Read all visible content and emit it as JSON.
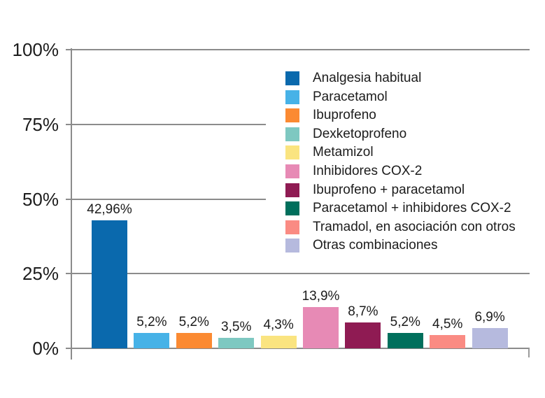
{
  "chart_data": {
    "type": "bar",
    "categories": [
      "Analgesia habitual",
      "Paracetamol",
      "Ibuprofeno",
      "Dexketoprofeno",
      "Metamizol",
      "Inhibidores COX-2",
      "Ibuprofeno + paracetamol",
      "Paracetamol + inhibidores COX-2",
      "Tramadol, en asociación con otros",
      "Otras combinaciones"
    ],
    "values": [
      42.96,
      5.2,
      5.2,
      3.5,
      4.3,
      13.9,
      8.7,
      5.2,
      4.5,
      6.9
    ],
    "value_labels": [
      "42,96%",
      "5,2%",
      "5,2%",
      "3,5%",
      "4,3%",
      "13,9%",
      "8,7%",
      "5,2%",
      "4,5%",
      "6,9%"
    ],
    "bar_colors": [
      "#0a69ad",
      "#47b2e7",
      "#fb8a32",
      "#7ec8c1",
      "#fae480",
      "#e78ab5",
      "#8f1b53",
      "#006f5c",
      "#fa8b83",
      "#b6bade"
    ],
    "yticks": {
      "labels": [
        "0%",
        "25%",
        "50%",
        "75%",
        "100%"
      ],
      "values": [
        0,
        25,
        50,
        75,
        100
      ]
    },
    "ylim": [
      0,
      100
    ],
    "grid": true,
    "legend_position": "upper-right",
    "xlabel": "",
    "ylabel": "",
    "title": ""
  },
  "colors": {
    "axis": "#8b8b8b",
    "text": "#1c1c1c",
    "background": "#ffffff"
  }
}
